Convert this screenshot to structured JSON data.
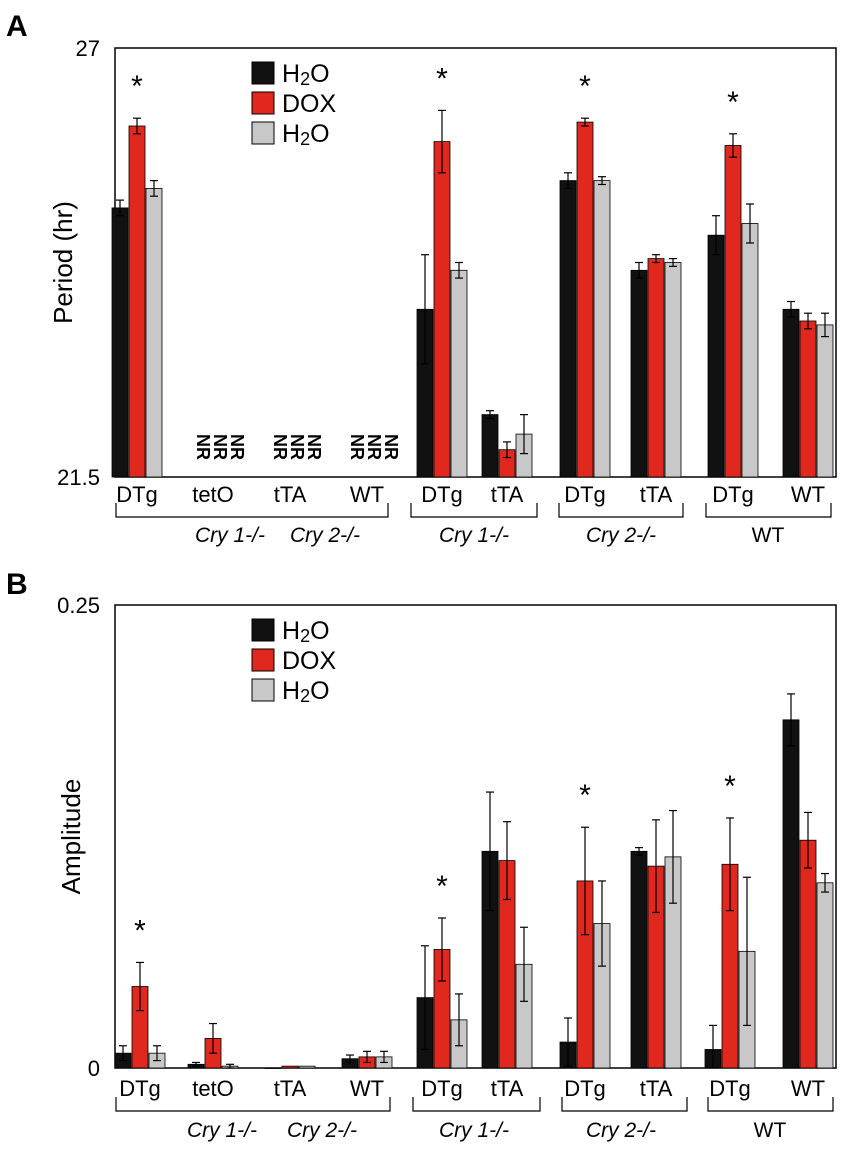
{
  "chart_data": [
    {
      "panel": "A",
      "type": "bar",
      "ylabel": "Period (hr)",
      "ylim": [
        21.5,
        27
      ],
      "y_tick_labels": [
        "27",
        "21.5"
      ],
      "legend": [
        "H2O",
        "DOX",
        "H2O"
      ],
      "series_colors": [
        "#111111",
        "#e0281e",
        "#c8c8c8"
      ],
      "categories": [
        "DTg",
        "tetO",
        "tTA",
        "WT",
        "DTg",
        "tTA",
        "DTg",
        "tTA",
        "DTg",
        "WT"
      ],
      "genotype_groups": [
        {
          "label": "Cry 1-/-   Cry 2-/-",
          "italic": true
        },
        {
          "label": "Cry 1-/-",
          "italic": true
        },
        {
          "label": "Cry 2-/-",
          "italic": true
        },
        {
          "label": "WT",
          "italic": false
        }
      ],
      "series": [
        {
          "name": "H2O",
          "values": [
            24.95,
            null,
            null,
            null,
            23.65,
            22.3,
            25.3,
            24.15,
            24.6,
            23.65
          ],
          "errors": [
            0.1,
            null,
            null,
            null,
            0.7,
            0.05,
            0.1,
            0.1,
            0.25,
            0.1
          ]
        },
        {
          "name": "DOX",
          "values": [
            26.0,
            null,
            null,
            null,
            25.8,
            21.85,
            26.05,
            24.3,
            25.75,
            23.5
          ],
          "errors": [
            0.1,
            null,
            null,
            null,
            0.4,
            0.1,
            0.05,
            0.05,
            0.15,
            0.1
          ]
        },
        {
          "name": "H2O",
          "values": [
            25.2,
            null,
            null,
            null,
            24.15,
            22.05,
            25.3,
            24.25,
            24.75,
            23.45
          ],
          "errors": [
            0.1,
            null,
            null,
            null,
            0.1,
            0.25,
            0.05,
            0.05,
            0.25,
            0.15
          ]
        }
      ],
      "not_rhythmic_label": "NR",
      "significance_marker": "*",
      "significant_categories": [
        0,
        4,
        6,
        8
      ]
    },
    {
      "panel": "B",
      "type": "bar",
      "ylabel": "Amplitude",
      "ylim": [
        0,
        0.25
      ],
      "y_tick_labels": [
        "0.25",
        "0"
      ],
      "legend": [
        "H2O",
        "DOX",
        "H2O"
      ],
      "series_colors": [
        "#111111",
        "#e0281e",
        "#c8c8c8"
      ],
      "categories": [
        "DTg",
        "tetO",
        "tTA",
        "WT",
        "DTg",
        "tTA",
        "DTg",
        "tTA",
        "DTg",
        "WT"
      ],
      "genotype_groups": [
        {
          "label": "Cry 1-/-   Cry 2-/-",
          "italic": true
        },
        {
          "label": "Cry 1-/-",
          "italic": true
        },
        {
          "label": "Cry 2-/-",
          "italic": true
        },
        {
          "label": "WT",
          "italic": false
        }
      ],
      "series": [
        {
          "name": "H2O",
          "values": [
            0.008,
            0.002,
            0.0,
            0.005,
            0.038,
            0.117,
            0.014,
            0.117,
            0.01,
            0.188
          ],
          "errors": [
            0.004,
            0.001,
            0.0,
            0.002,
            0.028,
            0.032,
            0.013,
            0.002,
            0.013,
            0.014
          ]
        },
        {
          "name": "DOX",
          "values": [
            0.044,
            0.016,
            0.001,
            0.006,
            0.064,
            0.112,
            0.101,
            0.109,
            0.11,
            0.123
          ],
          "errors": [
            0.013,
            0.008,
            0.0,
            0.003,
            0.017,
            0.021,
            0.029,
            0.025,
            0.025,
            0.015
          ]
        },
        {
          "name": "H2O",
          "values": [
            0.008,
            0.001,
            0.001,
            0.006,
            0.026,
            0.056,
            0.078,
            0.114,
            0.063,
            0.1
          ],
          "errors": [
            0.004,
            0.001,
            0.0,
            0.003,
            0.014,
            0.02,
            0.023,
            0.025,
            0.04,
            0.005
          ]
        }
      ],
      "significance_marker": "*",
      "significant_categories": [
        0,
        4,
        6,
        8
      ]
    }
  ]
}
